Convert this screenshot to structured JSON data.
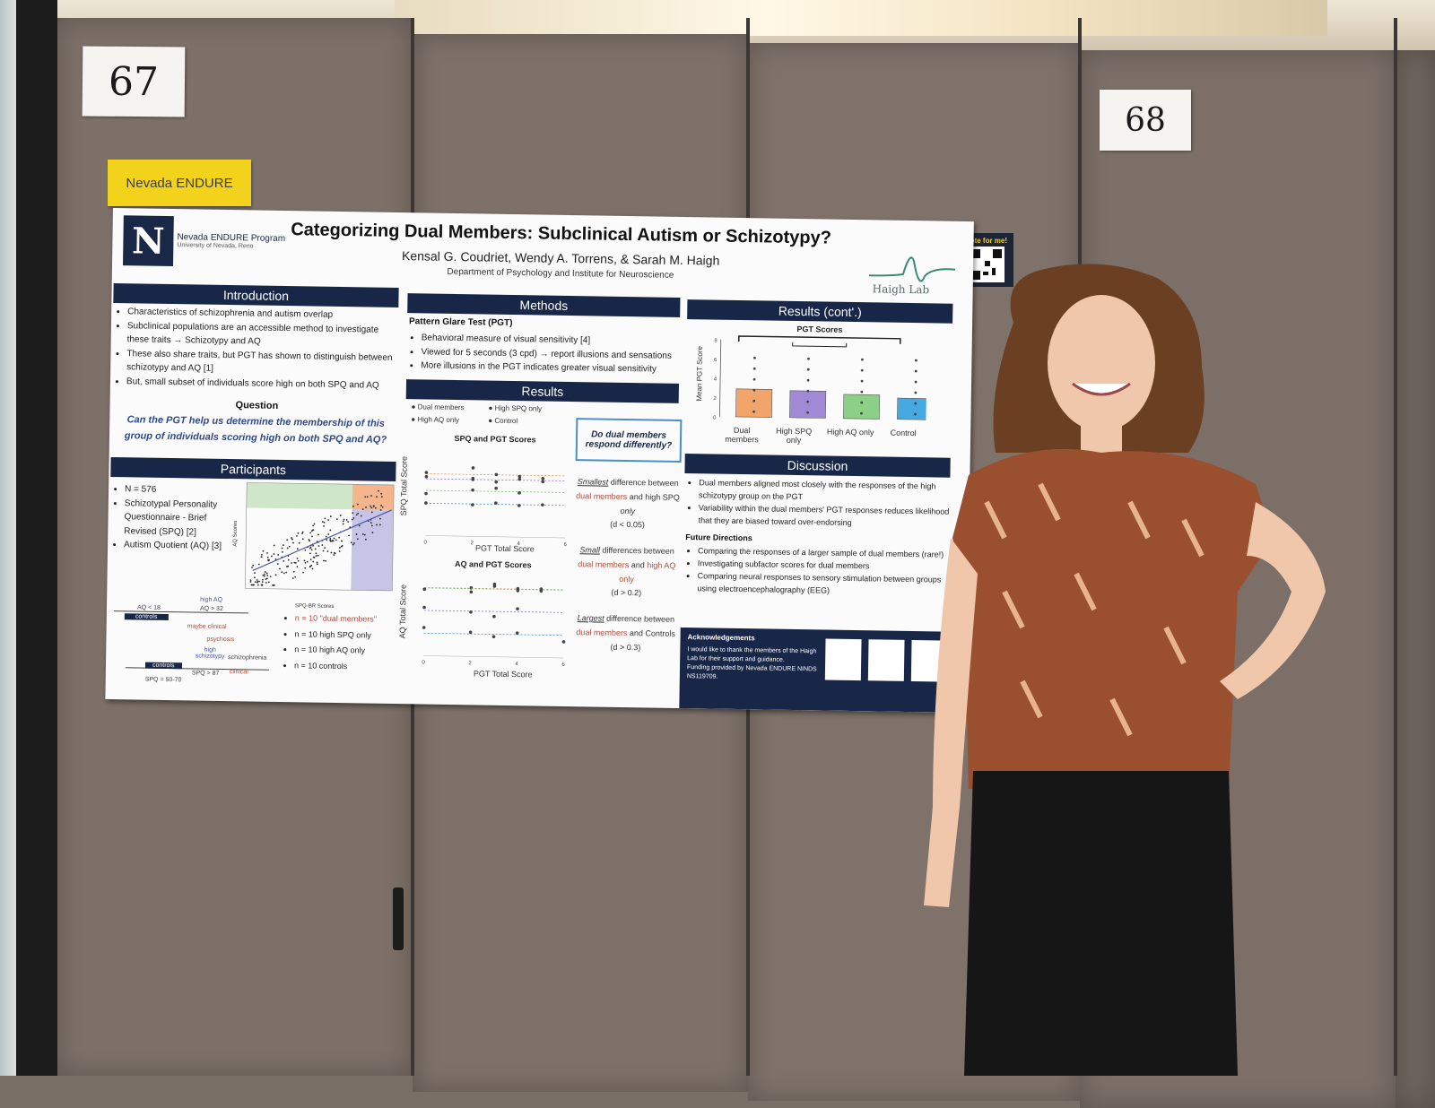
{
  "booth_numbers": {
    "left": "67",
    "right": "68"
  },
  "sticky_label": "Nevada ENDURE",
  "vote": {
    "label": "Vote for me!"
  },
  "poster": {
    "logo_letter": "N",
    "program": "Nevada ENDURE Program",
    "university": "University of Nevada, Reno",
    "title": "Categorizing Dual Members: Subclinical Autism or Schizotypy?",
    "authors": "Kensal G. Coudriet, Wendy A. Torrens, & Sarah M. Haigh",
    "department": "Department of Psychology and Institute for Neuroscience",
    "lab": "Haigh Lab",
    "introduction": {
      "heading": "Introduction",
      "bullets": [
        "Characteristics of schizophrenia and autism overlap",
        "Subclinical populations are an accessible method to investigate these traits → Schizotypy and AQ",
        "These also share traits, but PGT has shown to distinguish between schizotypy and AQ [1]",
        "But, small subset of individuals score high on both SPQ and AQ"
      ],
      "question_heading": "Question",
      "question": "Can the PGT help us determine the membership of this group of individuals scoring high on both SPQ and AQ?"
    },
    "participants": {
      "heading": "Participants",
      "bullets": [
        "N = 576",
        "Schizotypal Personality Questionnaire - Brief Revised (SPQ) [2]",
        "Autism Quotient (AQ) [3]"
      ],
      "scatter_xlabel": "SPQ-BR Scores",
      "scatter_ylabel": "AQ Scores",
      "groups": [
        "n = 10 \"dual members\"",
        "n = 10 high SPQ only",
        "n = 10 high AQ only",
        "n = 10 controls"
      ],
      "diagram": {
        "high_aq": "high AQ",
        "aq_32": "AQ > 32",
        "aq_18": "AQ < 18",
        "controls": "controls",
        "maybe_clinical": "maybe clinical",
        "psychosis": "psychosis",
        "high_schizotypy": "high schizotypy",
        "schizophrenia": "schizophrenia",
        "controls2": "controls",
        "spq_87": "SPQ > 87",
        "clinical": "clinical",
        "spq_range": "SPQ = 50-70"
      }
    },
    "methods": {
      "heading": "Methods",
      "subheading": "Pattern Glare Test (PGT)",
      "bullets": [
        "Behavioral measure of visual sensitivity [4]",
        "Viewed for 5 seconds (3 cpd) → report illusions and sensations",
        "More illusions in the PGT indicates greater visual sensitivity"
      ]
    },
    "results": {
      "heading": "Results",
      "legend": [
        "Dual members",
        "High SPQ only",
        "High AQ only",
        "Control"
      ],
      "chart1_title": "SPQ and PGT Scores",
      "chart1_ylabel": "SPQ Total Score",
      "chart1_xlabel": "PGT Total Score",
      "chart2_title": "AQ and PGT Scores",
      "chart2_ylabel": "AQ Total Score",
      "chart2_xlabel": "PGT Total Score",
      "callout": "Do dual members respond differently?",
      "note1": {
        "a": "Smallest",
        "b": " difference between ",
        "c": "dual members",
        "d": " and high SPQ ",
        "e": "only",
        "f": "(d < 0.05)"
      },
      "note2": {
        "a": "Small",
        "b": " differences between ",
        "c": "dual members",
        "d": " and ",
        "e": "high AQ only",
        "f": "(d > 0.2)"
      },
      "note3": {
        "a": "Largest",
        "b": " difference between ",
        "c": "dual members",
        "d": " and Controls (d > 0.3)"
      }
    },
    "results_cont": {
      "heading": "Results (cont'.)",
      "chart_title": "PGT Scores",
      "ylabel": "Mean PGT Score",
      "categories": [
        "Dual members",
        "High SPQ only",
        "High AQ only",
        "Control"
      ]
    },
    "discussion": {
      "heading": "Discussion",
      "bullets": [
        "Dual members aligned most closely with the responses of the high schizotypy group on the PGT",
        "Variability within the dual members' PGT responses reduces likelihood that they are biased toward over-endorsing"
      ],
      "future_heading": "Future Directions",
      "future": [
        "Comparing the responses of a larger sample of dual members (rare!)",
        "Investigating subfactor scores for dual members",
        "Comparing neural responses to sensory stimulation between groups using electroencephalography (EEG)"
      ]
    },
    "acknowledgements": {
      "heading": "Acknowledgements",
      "items": [
        "I would like to thank the members of the Haigh Lab for their support and guidance.",
        "Funding provided by Nevada ENDURE NINDS NS119709."
      ]
    }
  },
  "chart_data": [
    {
      "type": "bar",
      "title": "PGT Scores",
      "ylabel": "Mean PGT Score",
      "categories": [
        "Dual members",
        "High SPQ only",
        "High AQ only",
        "Control"
      ],
      "values": [
        2.9,
        2.8,
        2.5,
        2.2
      ],
      "ylim": [
        0,
        8
      ],
      "colors": [
        "#f2a56b",
        "#a08ad6",
        "#8ccf86",
        "#46a9e0"
      ]
    },
    {
      "type": "scatter",
      "title": "SPQ and PGT Scores",
      "xlabel": "PGT Total Score",
      "ylabel": "SPQ Total Score",
      "xlim": [
        0,
        6
      ],
      "ylim": [
        0,
        160
      ],
      "series": [
        {
          "name": "Dual members",
          "x": [
            0,
            2,
            2,
            3,
            4,
            5
          ],
          "y": [
            120,
            110,
            130,
            118,
            115,
            112
          ]
        },
        {
          "name": "High SPQ only",
          "x": [
            0,
            2,
            3,
            4,
            5
          ],
          "y": [
            112,
            108,
            104,
            110,
            106
          ]
        },
        {
          "name": "High AQ only",
          "x": [
            0,
            2,
            3,
            4
          ],
          "y": [
            80,
            88,
            92,
            84
          ]
        },
        {
          "name": "Control",
          "x": [
            0,
            2,
            3,
            4,
            5
          ],
          "y": [
            62,
            60,
            64,
            60,
            62
          ]
        }
      ]
    },
    {
      "type": "scatter",
      "title": "AQ and PGT Scores",
      "xlabel": "PGT Total Score",
      "ylabel": "AQ Total Score",
      "xlim": [
        0,
        6
      ],
      "ylim": [
        0,
        40
      ],
      "series": [
        {
          "name": "Dual members",
          "x": [
            0,
            2,
            3,
            4,
            5
          ],
          "y": [
            33,
            34,
            35,
            33,
            34
          ]
        },
        {
          "name": "High SPQ only",
          "x": [
            0,
            2,
            3,
            4
          ],
          "y": [
            24,
            22,
            20,
            24
          ]
        },
        {
          "name": "High AQ only",
          "x": [
            0,
            2,
            3,
            4,
            5
          ],
          "y": [
            33,
            32,
            36,
            34,
            33
          ]
        },
        {
          "name": "Control",
          "x": [
            0,
            2,
            3,
            4,
            6
          ],
          "y": [
            14,
            12,
            10,
            12,
            8
          ]
        }
      ]
    }
  ]
}
